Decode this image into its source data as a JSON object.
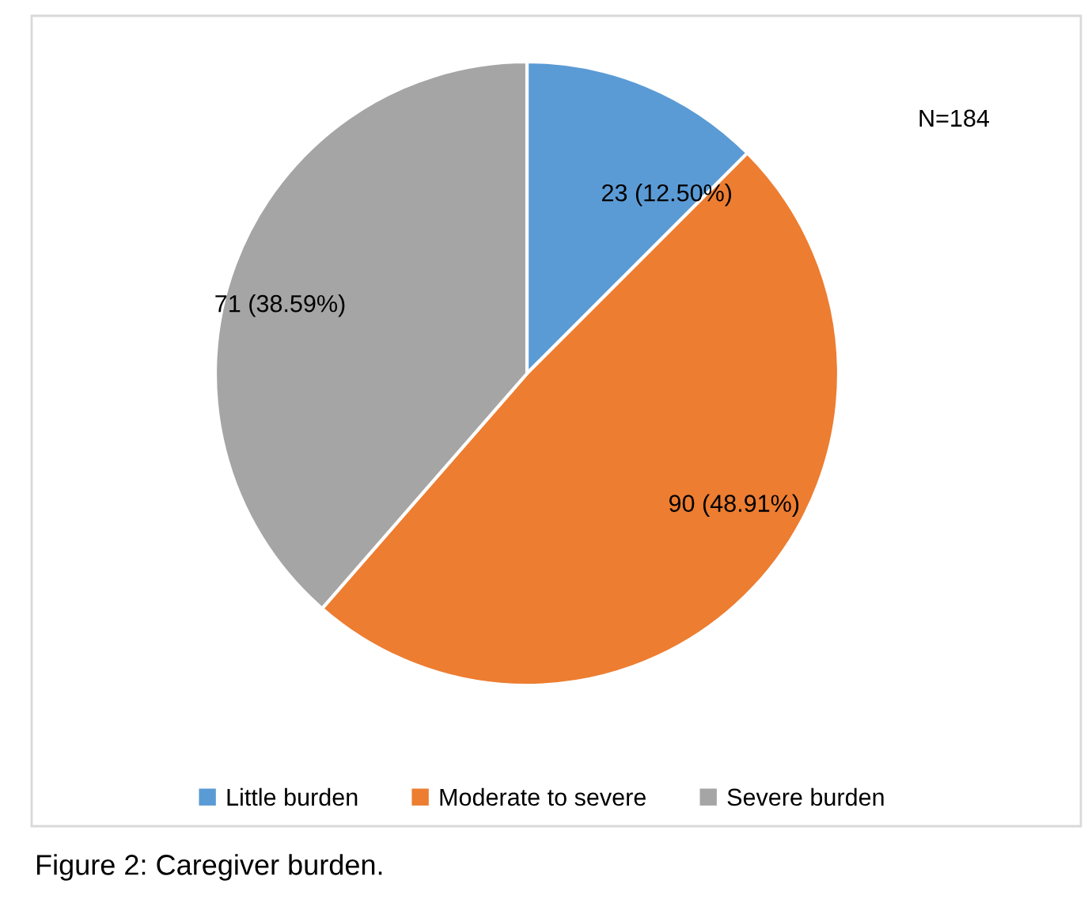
{
  "chart_data": {
    "type": "pie",
    "categories": [
      "Little burden",
      "Moderate to severe",
      "Severe burden"
    ],
    "values": [
      23,
      90,
      71
    ],
    "value_labels": [
      "23 (12.50%)",
      "90 (48.91%)",
      "71 (38.59%)"
    ],
    "colors": [
      "#5b9bd5",
      "#ed7d31",
      "#a5a5a5"
    ],
    "legend": "bottom",
    "annotations": [
      "N=184",
      "Figure 2: Caregiver burden."
    ]
  }
}
